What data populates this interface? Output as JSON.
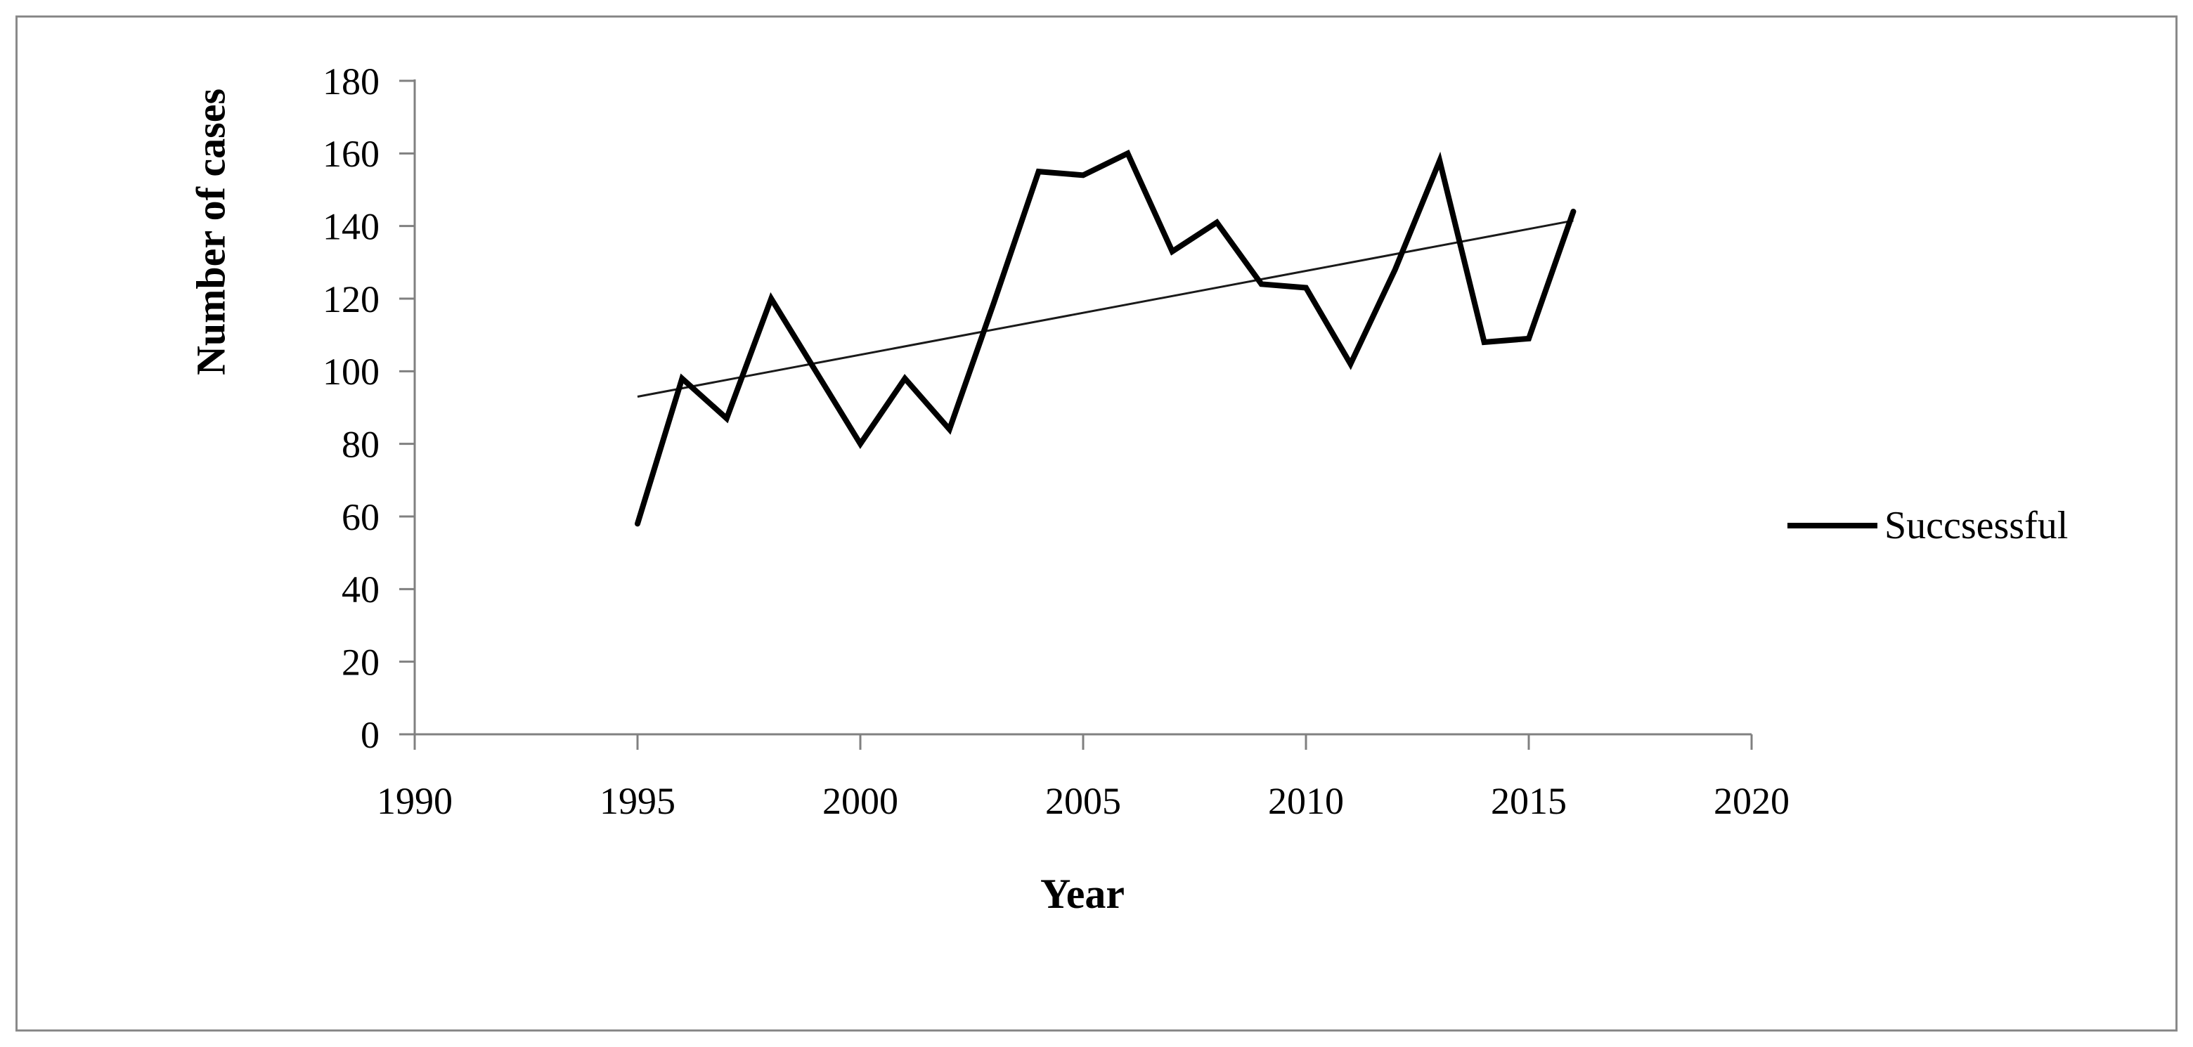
{
  "colors": {
    "background": "#ffffff",
    "figure_border": "#8a8a8a",
    "axis": "#808080",
    "series_line": "#000000",
    "trend_line": "#1a1a1a",
    "text": "#000000"
  },
  "chart_data": {
    "type": "line",
    "title": "",
    "xlabel": "Year",
    "ylabel": "Number of cases",
    "legend": {
      "label": "Succsessful",
      "position": "right-middle"
    },
    "grid": false,
    "xlim": [
      1990,
      2020
    ],
    "ylim": [
      0,
      180
    ],
    "xticks": [
      1990,
      1995,
      2000,
      2005,
      2010,
      2015,
      2020
    ],
    "yticks": [
      0,
      20,
      40,
      60,
      80,
      100,
      120,
      140,
      160,
      180
    ],
    "x": [
      1995,
      1996,
      1997,
      1998,
      1999,
      2000,
      2001,
      2002,
      2003,
      2004,
      2005,
      2006,
      2007,
      2008,
      2009,
      2010,
      2011,
      2012,
      2013,
      2014,
      2015,
      2016
    ],
    "series": [
      {
        "name": "Succsessful",
        "values": [
          58,
          98,
          87,
          120,
          100,
          80,
          98,
          84,
          119,
          155,
          154,
          160,
          133,
          141,
          124,
          123,
          102,
          128,
          158,
          108,
          109,
          144
        ]
      }
    ],
    "trendline": {
      "x_start": 1995,
      "y_start": 93,
      "x_end": 2016,
      "y_end": 141.5
    }
  }
}
